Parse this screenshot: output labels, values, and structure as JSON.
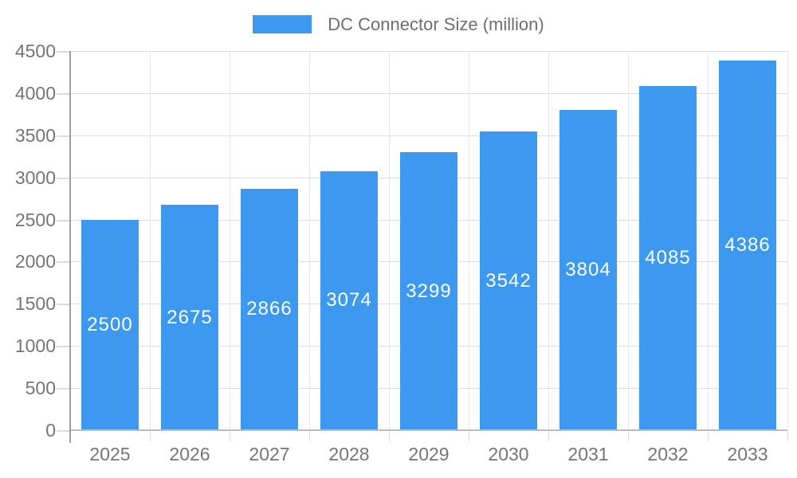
{
  "legend": {
    "label": "DC Connector Size (million)"
  },
  "chart_data": {
    "type": "bar",
    "title": "DC Connector Size (million)",
    "categories": [
      "2025",
      "2026",
      "2027",
      "2028",
      "2029",
      "2030",
      "2031",
      "2032",
      "2033"
    ],
    "series": [
      {
        "name": "DC Connector Size (million)",
        "values": [
          2500,
          2675,
          2866,
          3074,
          3299,
          3542,
          3804,
          4085,
          4386
        ]
      }
    ],
    "xlabel": "",
    "ylabel": "",
    "ylim": [
      0,
      4500
    ],
    "ytick_step": 500,
    "yticks": [
      0,
      500,
      1000,
      1500,
      2000,
      2500,
      3000,
      3500,
      4000,
      4500
    ],
    "grid": true,
    "legend_position": "top",
    "bar_labels_inside": true,
    "colors": {
      "bar": "#3D99F0",
      "bar_label": "#FFFFFF",
      "axis_text": "#757575",
      "legend_text": "#6E6E6E",
      "grid_h": "#DCDCDC",
      "grid_v": "#E6E6E6",
      "y_axis_line": "#9E9E9E",
      "x_axis_line": "#BDBDBD"
    }
  }
}
